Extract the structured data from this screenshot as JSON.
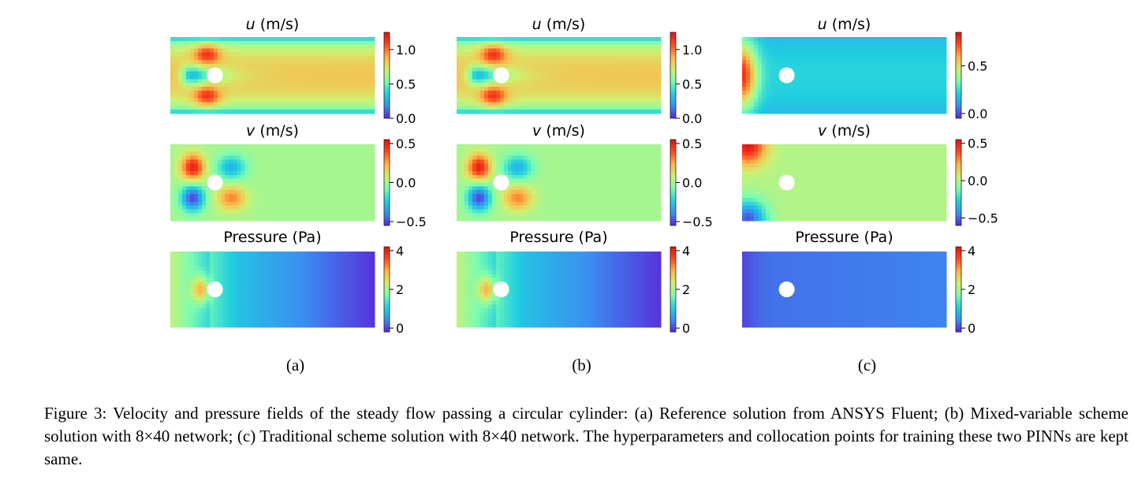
{
  "figure": {
    "columns": [
      {
        "label": "(a)",
        "panels": [
          {
            "title_var": "u",
            "title_unit": " (m/s)",
            "field": "u",
            "pattern": "ref",
            "cbar_ticks": [
              "1.0",
              "0.5",
              "0.0"
            ],
            "cbar_range": [
              0.0,
              1.25
            ],
            "cbar_tick_values": [
              1.0,
              0.5,
              0.0
            ]
          },
          {
            "title_var": "v",
            "title_unit": " (m/s)",
            "field": "v",
            "pattern": "ref",
            "cbar_ticks": [
              "0.5",
              "0.0",
              "−0.5"
            ],
            "cbar_range": [
              -0.55,
              0.55
            ],
            "cbar_tick_values": [
              0.5,
              0.0,
              -0.5
            ]
          },
          {
            "title_var": "",
            "title_unit": "Pressure (Pa)",
            "field": "p",
            "pattern": "ref",
            "cbar_ticks": [
              "4",
              "2",
              "0"
            ],
            "cbar_range": [
              -0.2,
              4.2
            ],
            "cbar_tick_values": [
              4,
              2,
              0
            ]
          }
        ]
      },
      {
        "label": "(b)",
        "panels": [
          {
            "title_var": "u",
            "title_unit": " (m/s)",
            "field": "u",
            "pattern": "ref",
            "cbar_ticks": [
              "1.0",
              "0.5",
              "0.0"
            ],
            "cbar_range": [
              0.0,
              1.25
            ],
            "cbar_tick_values": [
              1.0,
              0.5,
              0.0
            ]
          },
          {
            "title_var": "v",
            "title_unit": " (m/s)",
            "field": "v",
            "pattern": "ref",
            "cbar_ticks": [
              "0.5",
              "0.0",
              "−0.5"
            ],
            "cbar_range": [
              -0.55,
              0.55
            ],
            "cbar_tick_values": [
              0.5,
              0.0,
              -0.5
            ]
          },
          {
            "title_var": "",
            "title_unit": "Pressure (Pa)",
            "field": "p",
            "pattern": "ref",
            "cbar_ticks": [
              "4",
              "2",
              "0"
            ],
            "cbar_range": [
              -0.2,
              4.2
            ],
            "cbar_tick_values": [
              4,
              2,
              0
            ]
          }
        ]
      },
      {
        "label": "(c)",
        "panels": [
          {
            "title_var": "u",
            "title_unit": " (m/s)",
            "field": "u",
            "pattern": "trad",
            "cbar_ticks": [
              "0.5",
              "0.0"
            ],
            "cbar_range": [
              -0.05,
              0.85
            ],
            "cbar_tick_values": [
              0.5,
              0.0
            ]
          },
          {
            "title_var": "v",
            "title_unit": " (m/s)",
            "field": "v",
            "pattern": "trad",
            "cbar_ticks": [
              "0.5",
              "0.0",
              "−0.5"
            ],
            "cbar_range": [
              -0.6,
              0.55
            ],
            "cbar_tick_values": [
              0.5,
              0.0,
              -0.5
            ]
          },
          {
            "title_var": "",
            "title_unit": "Pressure (Pa)",
            "field": "p",
            "pattern": "trad",
            "cbar_ticks": [
              "4",
              "2",
              "0"
            ],
            "cbar_range": [
              -0.2,
              4.2
            ],
            "cbar_tick_values": [
              4,
              2,
              0
            ]
          }
        ]
      }
    ],
    "colormap": [
      "#5a24d8",
      "#3a8ef0",
      "#20cfe0",
      "#7cfcb0",
      "#d0f070",
      "#ffb348",
      "#ff4a20",
      "#e01010"
    ]
  },
  "caption": {
    "text": "Figure 3: Velocity and pressure fields of the steady flow passing a circular cylinder: (a) Reference solution from ANSYS Fluent; (b) Mixed-variable scheme solution with 8×40 network; (c) Traditional scheme solution with 8×40 network. The hyperparameters and collocation points for training these two PINNs are kept same."
  }
}
